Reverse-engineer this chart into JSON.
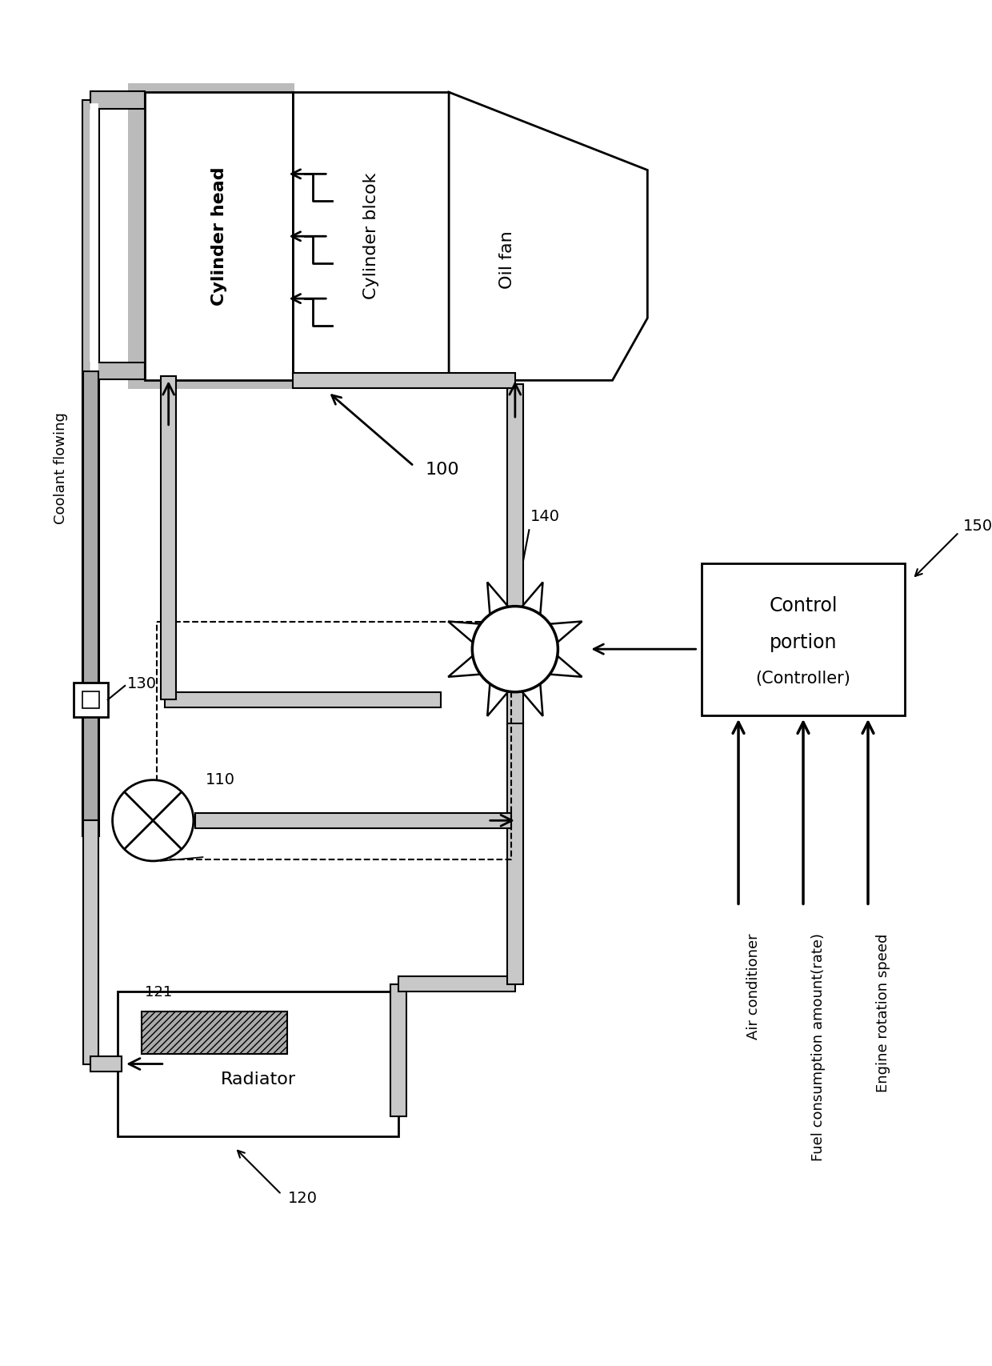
{
  "bg_color": "#ffffff",
  "lc": "#000000",
  "pipe_gray": "#c8c8c8",
  "pipe_dark": "#aaaaaa",
  "jacket_gray": "#bbbbbb",
  "ref_100": "100",
  "ref_110": "110",
  "ref_120": "120",
  "ref_121": "121",
  "ref_130": "130",
  "ref_140": "140",
  "ref_150": "150",
  "label_head": "Cylinder head",
  "label_block": "Cylinder blcok",
  "label_oil": "Oil fan",
  "label_radiator": "Radiator",
  "label_coolant": "Coolant flowing",
  "label_ctrl1": "Control",
  "label_ctrl2": "portion",
  "label_ctrl3": "(Controller)",
  "inputs": [
    "Air conditioner",
    "Fuel consumption amount(rate)",
    "Engine rotation speed"
  ]
}
